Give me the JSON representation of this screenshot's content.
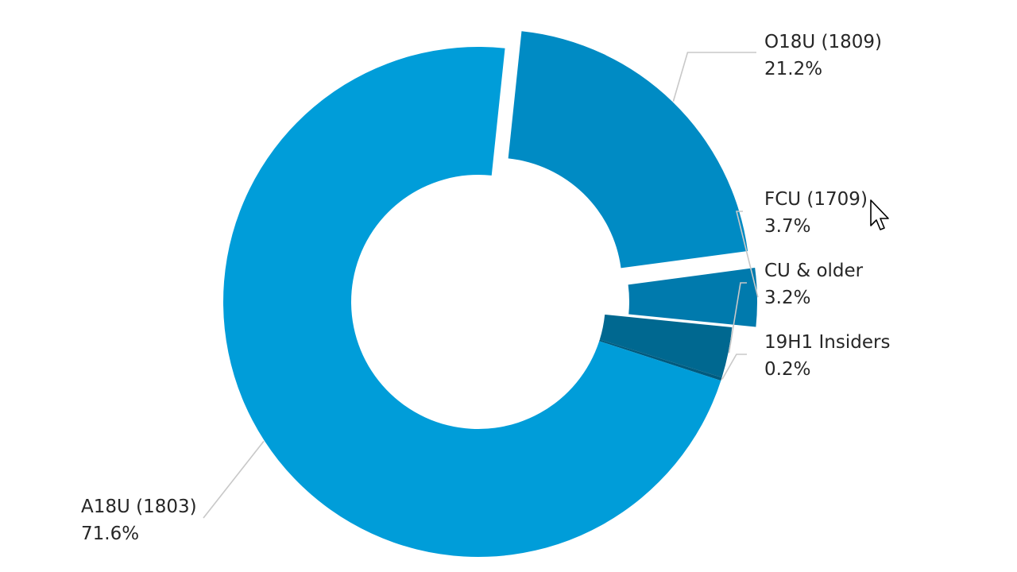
{
  "chart_data": {
    "type": "pie",
    "variant": "donut",
    "title": "",
    "slices": [
      {
        "name": "O18U (1809)",
        "value": 21.2,
        "label": "21.2%",
        "color": "#008bc4",
        "exploded": true
      },
      {
        "name": "FCU (1709)",
        "value": 3.7,
        "label": "3.7%",
        "color": "#007aad",
        "exploded": true
      },
      {
        "name": "CU & older",
        "value": 3.2,
        "label": "3.2%",
        "color": "#006890",
        "exploded": false
      },
      {
        "name": "19H1 Insiders",
        "value": 0.2,
        "label": "0.2%",
        "color": "#005a7e",
        "exploded": false
      },
      {
        "name": "A18U (1803)",
        "value": 71.6,
        "label": "71.6%",
        "color": "#009dd9",
        "exploded": false
      }
    ],
    "legend": "none",
    "data_labels": "outside with leader lines"
  },
  "cursor": {
    "icon": "mouse-pointer-icon"
  }
}
